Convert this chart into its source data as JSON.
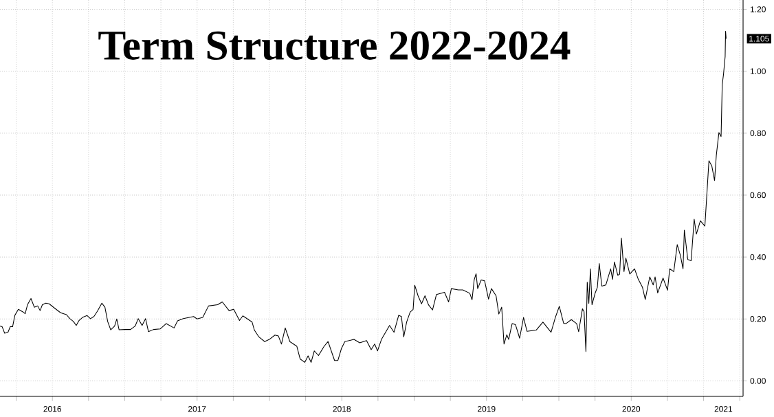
{
  "chart_data": {
    "type": "line",
    "title": "Term Structure 2022-2024",
    "x": [
      2016.138,
      2016.153,
      2016.17,
      2016.193,
      2016.209,
      2016.225,
      2016.241,
      2016.265,
      2016.296,
      2016.312,
      2016.328,
      2016.352,
      2016.375,
      2016.399,
      2016.415,
      2016.431,
      2016.455,
      2016.478,
      2016.518,
      2016.557,
      2016.597,
      2016.621,
      2016.645,
      2016.665,
      2016.684,
      2016.708,
      2016.74,
      2016.763,
      2016.787,
      2016.811,
      2016.842,
      2016.863,
      2016.882,
      2016.903,
      2016.93,
      2016.945,
      2016.961,
      2017.001,
      2017.04,
      2017.072,
      2017.093,
      2017.12,
      2017.144,
      2017.164,
      2017.199,
      2017.246,
      2017.286,
      2017.341,
      2017.365,
      2017.405,
      2017.476,
      2017.5,
      2017.539,
      2017.579,
      2017.642,
      2017.674,
      2017.721,
      2017.753,
      2017.793,
      2017.816,
      2017.88,
      2017.896,
      2017.927,
      2017.967,
      2017.999,
      2018.038,
      2018.062,
      2018.083,
      2018.109,
      2018.141,
      2018.189,
      2018.212,
      2018.244,
      2018.267,
      2018.288,
      2018.31,
      2018.339,
      2018.378,
      2018.405,
      2018.45,
      2018.473,
      2018.497,
      2018.521,
      2018.584,
      2018.624,
      2018.671,
      2018.703,
      2018.727,
      2018.747,
      2018.774,
      2018.83,
      2018.861,
      2018.893,
      2018.912,
      2018.928,
      2018.948,
      2018.972,
      2018.993,
      2019.004,
      2019.027,
      2019.051,
      2019.075,
      2019.099,
      2019.127,
      2019.154,
      2019.21,
      2019.238,
      2019.257,
      2019.305,
      2019.336,
      2019.384,
      2019.4,
      2019.415,
      2019.428,
      2019.439,
      2019.463,
      2019.487,
      2019.514,
      2019.534,
      2019.566,
      2019.585,
      2019.605,
      2019.621,
      2019.64,
      2019.653,
      2019.677,
      2019.7,
      2019.729,
      2019.756,
      2019.78,
      2019.843,
      2019.89,
      2019.946,
      2019.978,
      2020.003,
      2020.033,
      2020.049,
      2020.086,
      2020.123,
      2020.137,
      2020.163,
      2020.174,
      2020.187,
      2020.196,
      2020.207,
      2020.218,
      2020.229,
      2020.251,
      2020.266,
      2020.279,
      2020.297,
      2020.325,
      2020.358,
      2020.371,
      2020.384,
      2020.407,
      2020.42,
      2020.432,
      2020.45,
      2020.463,
      2020.49,
      2020.523,
      2020.549,
      2020.578,
      2020.597,
      2020.628,
      2020.652,
      2020.665,
      2020.683,
      2020.72,
      2020.751,
      2020.766,
      2020.794,
      2020.818,
      2020.84,
      2020.858,
      2020.867,
      2020.891,
      2020.914,
      2020.935,
      2020.95,
      2020.978,
      2021.009,
      2021.024,
      2021.037,
      2021.057,
      2021.076,
      2021.088,
      2021.106,
      2021.121,
      2021.129,
      2021.138,
      2021.149,
      2021.152,
      2021.156
    ],
    "series": [
      {
        "color": "#000000",
        "values": [
          0.177,
          0.175,
          0.154,
          0.157,
          0.175,
          0.175,
          0.212,
          0.231,
          0.223,
          0.217,
          0.246,
          0.266,
          0.238,
          0.242,
          0.227,
          0.246,
          0.251,
          0.249,
          0.234,
          0.22,
          0.214,
          0.201,
          0.192,
          0.179,
          0.195,
          0.205,
          0.211,
          0.201,
          0.208,
          0.225,
          0.251,
          0.238,
          0.192,
          0.165,
          0.177,
          0.2,
          0.165,
          0.166,
          0.166,
          0.177,
          0.201,
          0.179,
          0.201,
          0.159,
          0.166,
          0.168,
          0.185,
          0.171,
          0.194,
          0.201,
          0.208,
          0.2,
          0.205,
          0.242,
          0.246,
          0.255,
          0.227,
          0.231,
          0.195,
          0.21,
          0.19,
          0.164,
          0.142,
          0.127,
          0.134,
          0.148,
          0.145,
          0.119,
          0.171,
          0.127,
          0.112,
          0.071,
          0.06,
          0.081,
          0.06,
          0.097,
          0.082,
          0.112,
          0.127,
          0.066,
          0.066,
          0.104,
          0.127,
          0.134,
          0.123,
          0.13,
          0.101,
          0.119,
          0.097,
          0.134,
          0.179,
          0.157,
          0.212,
          0.208,
          0.142,
          0.19,
          0.222,
          0.231,
          0.309,
          0.275,
          0.249,
          0.275,
          0.246,
          0.229,
          0.279,
          0.286,
          0.255,
          0.298,
          0.294,
          0.294,
          0.283,
          0.262,
          0.327,
          0.346,
          0.298,
          0.326,
          0.323,
          0.264,
          0.298,
          0.275,
          0.216,
          0.238,
          0.119,
          0.149,
          0.134,
          0.185,
          0.182,
          0.138,
          0.205,
          0.16,
          0.164,
          0.19,
          0.157,
          0.208,
          0.241,
          0.186,
          0.185,
          0.198,
          0.185,
          0.159,
          0.233,
          0.224,
          0.095,
          0.319,
          0.25,
          0.362,
          0.246,
          0.284,
          0.302,
          0.379,
          0.306,
          0.31,
          0.362,
          0.328,
          0.384,
          0.341,
          0.345,
          0.461,
          0.353,
          0.397,
          0.345,
          0.362,
          0.328,
          0.302,
          0.263,
          0.336,
          0.31,
          0.336,
          0.284,
          0.332,
          0.293,
          0.362,
          0.353,
          0.44,
          0.405,
          0.362,
          0.487,
          0.392,
          0.388,
          0.522,
          0.474,
          0.517,
          0.5,
          0.612,
          0.711,
          0.694,
          0.647,
          0.728,
          0.802,
          0.789,
          0.957,
          0.991,
          1.047,
          1.129,
          1.105
        ]
      }
    ],
    "xlim": [
      2016.138,
      2021.273
    ],
    "xticks": [
      {
        "value": 2016.25,
        "label": null
      },
      {
        "value": 2016.5,
        "label": null
      },
      {
        "value": 2016.75,
        "label": null
      },
      {
        "value": 2017,
        "label": null
      },
      {
        "value": 2017.25,
        "label": null
      },
      {
        "value": 2017.5,
        "label": null
      },
      {
        "value": 2017.75,
        "label": null
      },
      {
        "value": 2018,
        "label": null
      },
      {
        "value": 2018.25,
        "label": null
      },
      {
        "value": 2018.5,
        "label": null
      },
      {
        "value": 2018.75,
        "label": null
      },
      {
        "value": 2019,
        "label": null
      },
      {
        "value": 2019.25,
        "label": null
      },
      {
        "value": 2019.5,
        "label": null
      },
      {
        "value": 2019.75,
        "label": null
      },
      {
        "value": 2020,
        "label": null
      },
      {
        "value": 2020.25,
        "label": null
      },
      {
        "value": 2020.5,
        "label": null
      },
      {
        "value": 2020.75,
        "label": null
      },
      {
        "value": 2021,
        "label": null
      },
      {
        "value": 2021.25,
        "label": null
      },
      {
        "value": 2016.5,
        "label": "2016"
      },
      {
        "value": 2017.5,
        "label": "2017"
      },
      {
        "value": 2018.5,
        "label": "2018"
      },
      {
        "value": 2019.5,
        "label": "2019"
      },
      {
        "value": 2020.5,
        "label": "2020"
      },
      {
        "value": 2021.137,
        "label": "2021"
      }
    ],
    "ylim": [
      -0.05,
      1.23
    ],
    "yticks": [
      {
        "value": 0,
        "label": "0.00"
      },
      {
        "value": 0.2,
        "label": "0.20"
      },
      {
        "value": 0.4,
        "label": "0.40"
      },
      {
        "value": 0.6,
        "label": "0.60"
      },
      {
        "value": 0.8,
        "label": "0.80"
      },
      {
        "value": 1.0,
        "label": "1.00"
      },
      {
        "value": 1.2,
        "label": "1.20"
      }
    ],
    "grid": true,
    "line_style": "solid",
    "annotations": [
      "1.105"
    ]
  }
}
